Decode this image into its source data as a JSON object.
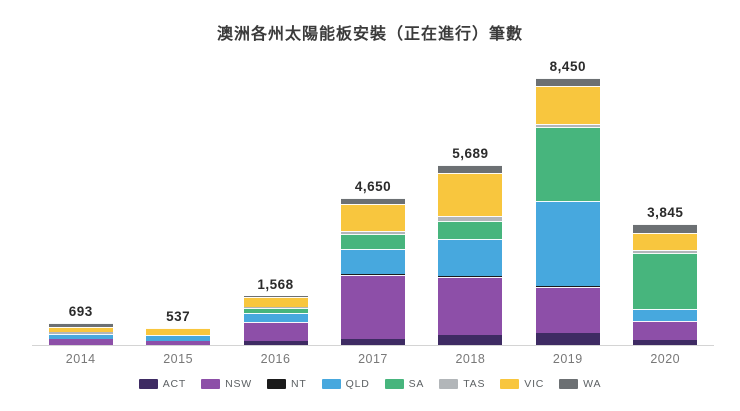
{
  "title": "澳洲各州太陽能板安裝（正在進行）筆數",
  "colors": {
    "ACT": "#3e2b63",
    "NSW": "#8d4fa8",
    "NT": "#1b1b1b",
    "QLD": "#47a8de",
    "SA": "#47b57d",
    "TAS": "#b2b6b9",
    "VIC": "#f8c63e",
    "WA": "#6c7073"
  },
  "chart_data": {
    "type": "bar",
    "stacked": true,
    "title": "澳洲各州太陽能板安裝（正在進行）筆數",
    "categories": [
      "2014",
      "2015",
      "2016",
      "2017",
      "2018",
      "2019",
      "2020"
    ],
    "totals": [
      693,
      537,
      1568,
      4650,
      5689,
      8450,
      3845
    ],
    "totals_labels": [
      "693",
      "537",
      "1,568",
      "4,650",
      "5,689",
      "8,450",
      "3,845"
    ],
    "series": [
      {
        "name": "ACT",
        "values": [
          0,
          0,
          130,
          190,
          315,
          370,
          158
        ]
      },
      {
        "name": "NSW",
        "values": [
          190,
          130,
          590,
          2020,
          1850,
          1475,
          610
        ]
      },
      {
        "name": "NT",
        "values": [
          0,
          0,
          0,
          30,
          25,
          30,
          0
        ]
      },
      {
        "name": "QLD",
        "values": [
          165,
          200,
          300,
          790,
          1160,
          2690,
          358
        ]
      },
      {
        "name": "SA",
        "values": [
          0,
          0,
          140,
          480,
          580,
          2320,
          1790
        ]
      },
      {
        "name": "TAS",
        "values": [
          50,
          0,
          58,
          105,
          155,
          105,
          105
        ]
      },
      {
        "name": "VIC",
        "values": [
          170,
          207,
          290,
          850,
          1350,
          1200,
          527
        ]
      },
      {
        "name": "WA",
        "values": [
          118,
          0,
          60,
          185,
          254,
          260,
          297
        ]
      }
    ],
    "legend": [
      "ACT",
      "NSW",
      "NT",
      "QLD",
      "SA",
      "TAS",
      "VIC",
      "WA"
    ],
    "legend_position": "bottom",
    "xlabel": "",
    "ylabel": "",
    "ylim": [
      0,
      8450
    ],
    "grid": false
  }
}
